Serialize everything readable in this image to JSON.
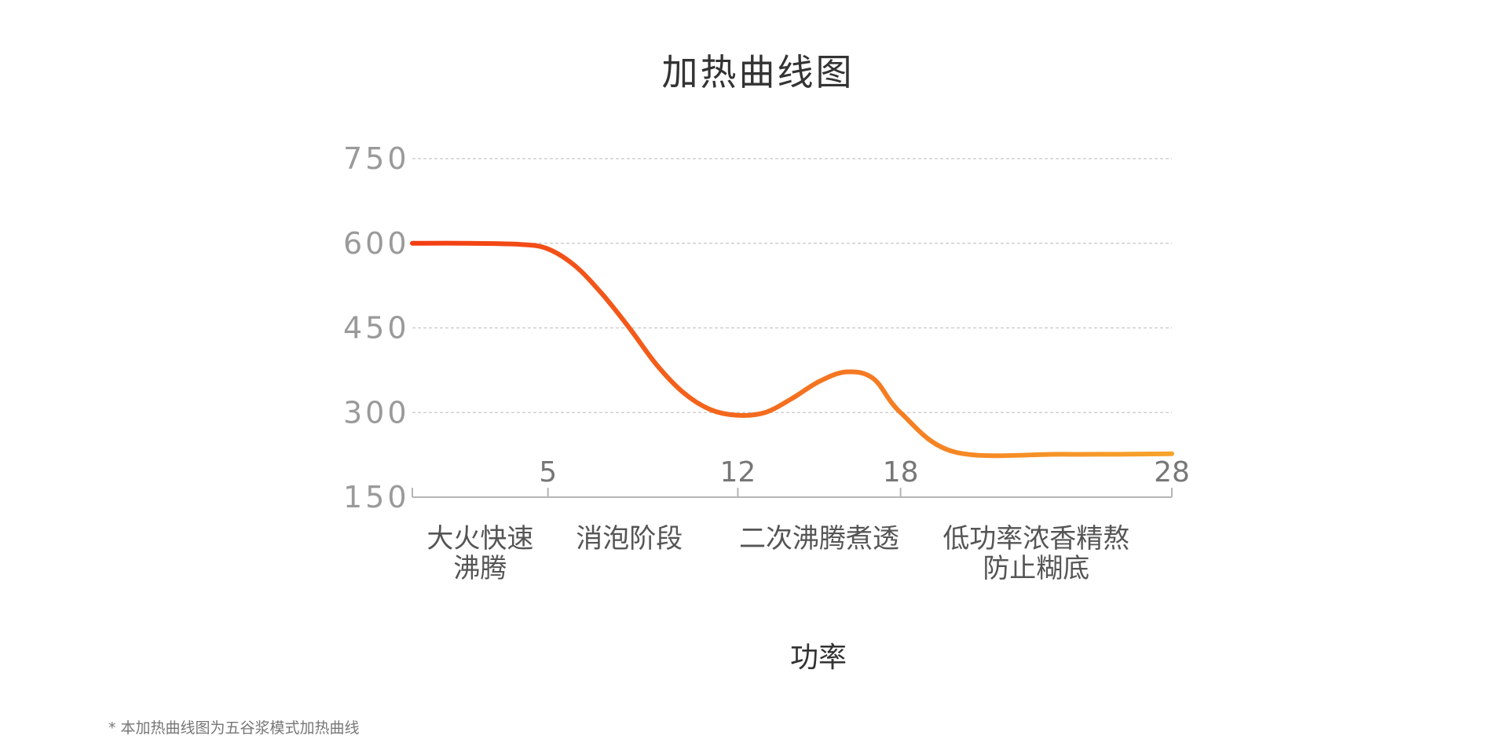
{
  "footnote": "* 本加热曲线图为五谷浆模式加热曲线",
  "chart_data": {
    "type": "line",
    "title": "加热曲线图",
    "xlabel": "",
    "ylabel": "",
    "ylim": [
      150,
      750
    ],
    "yticks": [
      150,
      300,
      450,
      600,
      750
    ],
    "xlim": [
      0,
      28
    ],
    "xticks": [
      5,
      12,
      18,
      28
    ],
    "grid": true,
    "legend": "bottom",
    "phases": [
      {
        "lines": [
          "大火快速",
          "沸腾"
        ],
        "x": 2.5
      },
      {
        "lines": [
          "消泡阶段"
        ],
        "x": 8
      },
      {
        "lines": [
          "二次沸腾煮透"
        ],
        "x": 15
      },
      {
        "lines": [
          "低功率浓香精熬",
          "防止糊底"
        ],
        "x": 23
      }
    ],
    "series": [
      {
        "name": "功率",
        "x": [
          0,
          2,
          4,
          5,
          6,
          7,
          8,
          9,
          10,
          11,
          12,
          13,
          14,
          15,
          16,
          17,
          18,
          20,
          24,
          28
        ],
        "values": [
          600,
          600,
          598,
          590,
          560,
          510,
          450,
          385,
          335,
          305,
          295,
          300,
          325,
          355,
          372,
          360,
          300,
          230,
          226,
          227
        ],
        "color_start": "#f23c12",
        "color_end": "#f7a42c"
      }
    ]
  }
}
